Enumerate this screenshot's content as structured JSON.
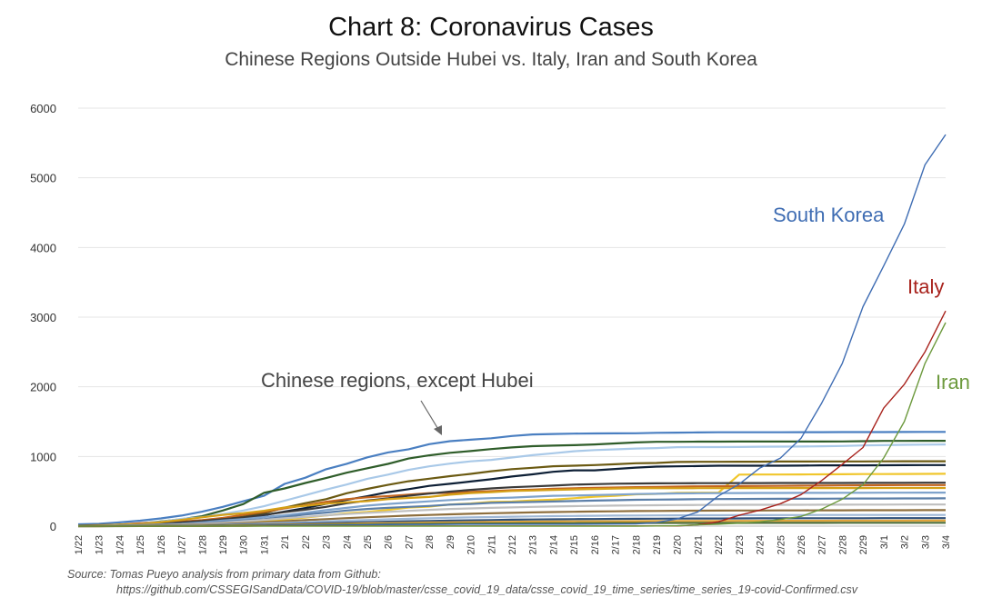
{
  "title": "Chart 8: Coronavirus Cases",
  "subtitle": "Chinese Regions Outside Hubei vs. Italy, Iran and South Korea",
  "source_line1": "Source: Tomas Pueyo analysis from primary data from Github:",
  "source_line2": "https://github.com/CSSEGISandData/COVID-19/blob/master/csse_covid_19_data/csse_covid_19_time_series/time_series_19-covid-Confirmed.csv",
  "colors": {
    "south_korea": "#3f6db3",
    "italy": "#a8221c",
    "iran": "#6d9a3e",
    "grid": "#e4e4e4",
    "axis_text": "#333333"
  },
  "chart_data": {
    "type": "line",
    "x": [
      "1/22",
      "1/23",
      "1/24",
      "1/25",
      "1/26",
      "1/27",
      "1/28",
      "1/29",
      "1/30",
      "1/31",
      "2/1",
      "2/2",
      "2/3",
      "2/4",
      "2/5",
      "2/6",
      "2/7",
      "2/8",
      "2/9",
      "2/10",
      "2/11",
      "2/12",
      "2/13",
      "2/14",
      "2/15",
      "2/16",
      "2/17",
      "2/18",
      "2/19",
      "2/20",
      "2/21",
      "2/22",
      "2/23",
      "2/24",
      "2/25",
      "2/26",
      "2/27",
      "2/28",
      "2/29",
      "3/1",
      "3/2",
      "3/3",
      "3/4"
    ],
    "ylim": [
      0,
      6000
    ],
    "yticks": [
      0,
      1000,
      2000,
      3000,
      4000,
      5000,
      6000
    ],
    "grid": true,
    "legend": "none",
    "annotations": [
      {
        "text": "South Korea",
        "series": "south_korea"
      },
      {
        "text": "Italy",
        "series": "italy"
      },
      {
        "text": "Iran",
        "series": "iran"
      },
      {
        "text": "Chinese regions, except Hubei",
        "series": "chinese_regions"
      }
    ],
    "series": [
      {
        "id": "south_korea",
        "color": "#3f6db3",
        "highlight": true,
        "values": [
          1,
          1,
          2,
          2,
          3,
          4,
          4,
          4,
          4,
          11,
          12,
          15,
          15,
          16,
          19,
          23,
          24,
          24,
          25,
          27,
          28,
          28,
          28,
          28,
          28,
          29,
          30,
          31,
          51,
          104,
          204,
          433,
          602,
          833,
          977,
          1261,
          1766,
          2337,
          3150,
          3736,
          4335,
          5186,
          5621
        ]
      },
      {
        "id": "italy",
        "color": "#a8221c",
        "highlight": true,
        "values": [
          0,
          0,
          0,
          0,
          0,
          0,
          0,
          0,
          0,
          2,
          2,
          2,
          2,
          2,
          2,
          2,
          3,
          3,
          3,
          3,
          3,
          3,
          3,
          3,
          3,
          3,
          3,
          3,
          3,
          3,
          20,
          62,
          155,
          229,
          322,
          453,
          655,
          888,
          1128,
          1694,
          2036,
          2502,
          3089
        ]
      },
      {
        "id": "iran",
        "color": "#6d9a3e",
        "highlight": true,
        "values": [
          0,
          0,
          0,
          0,
          0,
          0,
          0,
          0,
          0,
          0,
          0,
          0,
          0,
          0,
          0,
          0,
          0,
          0,
          0,
          0,
          0,
          0,
          0,
          0,
          0,
          0,
          0,
          0,
          2,
          5,
          18,
          28,
          43,
          61,
          95,
          139,
          245,
          388,
          593,
          978,
          1501,
          2336,
          2922
        ]
      },
      {
        "id": "chinese_regions",
        "color": "#4a7fc1",
        "values": [
          26,
          32,
          53,
          78,
          111,
          151,
          207,
          277,
          358,
          436,
          606,
          695,
          816,
          895,
          988,
          1058,
          1103,
          1177,
          1219,
          1241,
          1261,
          1294,
          1316,
          1322,
          1328,
          1331,
          1332,
          1333,
          1339,
          1342,
          1345,
          1347,
          1347,
          1347,
          1348,
          1349,
          1349,
          1350,
          1350,
          1350,
          1351,
          1352,
          1352
        ]
      },
      {
        "id": "chinese_regions",
        "color": "#2f5d2a",
        "values": [
          2,
          5,
          15,
          39,
          68,
          99,
          142,
          224,
          317,
          479,
          541,
          620,
          690,
          767,
          831,
          893,
          970,
          1016,
          1052,
          1077,
          1106,
          1129,
          1148,
          1155,
          1162,
          1172,
          1187,
          1201,
          1210,
          1210,
          1213,
          1213,
          1215,
          1215,
          1215,
          1215,
          1215,
          1216,
          1219,
          1223,
          1224,
          1225,
          1225
        ]
      },
      {
        "id": "chinese_regions",
        "color": "#a9c9e8",
        "values": [
          5,
          9,
          25,
          43,
          62,
          104,
          128,
          173,
          224,
          286,
          365,
          445,
          524,
          597,
          679,
          739,
          808,
          858,
          898,
          930,
          951,
          985,
          1019,
          1046,
          1075,
          1092,
          1102,
          1114,
          1121,
          1134,
          1135,
          1135,
          1136,
          1140,
          1141,
          1143,
          1146,
          1151,
          1158,
          1162,
          1167,
          1170,
          1172
        ]
      },
      {
        "id": "chinese_regions",
        "color": "#0d1f35",
        "values": [
          1,
          5,
          8,
          18,
          33,
          47,
          58,
          78,
          104,
          156,
          210,
          260,
          321,
          377,
          429,
          488,
          531,
          578,
          608,
          640,
          673,
          712,
          743,
          780,
          801,
          801,
          821,
          840,
          854,
          858,
          862,
          867,
          867,
          867,
          868,
          869,
          873,
          873,
          873,
          874,
          875,
          876,
          877
        ]
      },
      {
        "id": "chinese_regions",
        "color": "#6b5a12",
        "values": [
          9,
          16,
          20,
          33,
          40,
          53,
          66,
          96,
          136,
          186,
          265,
          330,
          387,
          472,
          535,
          592,
          644,
          681,
          717,
          750,
          788,
          818,
          838,
          860,
          868,
          877,
          888,
          902,
          906,
          921,
          923,
          924,
          925,
          925,
          927,
          928,
          929,
          929,
          929,
          930,
          931,
          931,
          931
        ]
      },
      {
        "id": "chinese_regions",
        "color": "#f0c62c",
        "values": [
          0,
          0,
          2,
          5,
          9,
          18,
          26,
          37,
          54,
          78,
          96,
          124,
          153,
          184,
          205,
          234,
          268,
          280,
          310,
          325,
          347,
          352,
          369,
          380,
          400,
          423,
          435,
          457,
          463,
          477,
          480,
          480,
          740,
          741,
          741,
          742,
          744,
          745,
          747,
          748,
          749,
          750,
          751
        ]
      },
      {
        "id": "chinese_regions",
        "color": "#c4651e",
        "values": [
          4,
          10,
          22,
          40,
          51,
          65,
          88,
          117,
          163,
          206,
          256,
          301,
          350,
          387,
          413,
          430,
          453,
          473,
          476,
          490,
          502,
          515,
          524,
          536,
          544,
          551,
          555,
          560,
          563,
          568,
          571,
          573,
          575,
          576,
          578,
          580,
          582,
          584,
          586,
          588,
          589,
          590,
          590
        ]
      },
      {
        "id": "chinese_regions",
        "color": "#3a3a3a",
        "values": [
          3,
          4,
          10,
          22,
          36,
          53,
          73,
          101,
          126,
          163,
          202,
          236,
          277,
          329,
          366,
          398,
          437,
          467,
          496,
          521,
          541,
          558,
          570,
          582,
          596,
          602,
          609,
          612,
          614,
          616,
          617,
          617,
          618,
          618,
          619,
          619,
          620,
          620,
          621,
          622,
          622,
          623,
          623
        ]
      },
      {
        "id": "chinese_regions",
        "color": "#d4a017",
        "values": [
          2,
          9,
          21,
          27,
          57,
          90,
          126,
          162,
          186,
          221,
          268,
          292,
          322,
          343,
          359,
          387,
          405,
          419,
          451,
          473,
          487,
          505,
          511,
          519,
          527,
          533,
          540,
          544,
          544,
          544,
          545,
          545,
          546,
          546,
          546,
          546,
          547,
          547,
          547,
          548,
          548,
          548,
          548
        ]
      },
      {
        "id": "chinese_regions",
        "color": "#7fa3cc",
        "values": [
          1,
          5,
          9,
          17,
          24,
          35,
          55,
          79,
          102,
          130,
          156,
          192,
          230,
          262,
          295,
          318,
          338,
          356,
          374,
          390,
          402,
          410,
          423,
          436,
          440,
          446,
          453,
          460,
          465,
          470,
          472,
          474,
          475,
          476,
          476,
          477,
          478,
          479,
          479,
          480,
          480,
          481,
          481
        ]
      },
      {
        "id": "chinese_regions",
        "color": "#5c7fa8",
        "values": [
          1,
          3,
          7,
          12,
          21,
          32,
          45,
          63,
          80,
          100,
          131,
          168,
          194,
          224,
          246,
          262,
          276,
          290,
          309,
          318,
          334,
          340,
          347,
          353,
          360,
          366,
          372,
          378,
          381,
          384,
          387,
          389,
          390,
          391,
          392,
          393,
          394,
          395,
          396,
          397,
          398,
          398,
          399
        ]
      },
      {
        "id": "chinese_regions",
        "color": "#bfbfbf",
        "values": [
          1,
          2,
          5,
          9,
          16,
          25,
          35,
          50,
          70,
          90,
          112,
          133,
          155,
          174,
          191,
          205,
          219,
          234,
          246,
          254,
          262,
          269,
          276,
          282,
          287,
          291,
          295,
          298,
          300,
          302,
          304,
          305,
          306,
          306,
          307,
          307,
          308,
          308,
          309,
          309,
          310,
          310,
          310
        ]
      },
      {
        "id": "chinese_regions",
        "color": "#8e6f3e",
        "values": [
          0,
          1,
          3,
          6,
          10,
          15,
          22,
          31,
          42,
          56,
          71,
          86,
          101,
          115,
          128,
          140,
          151,
          161,
          170,
          178,
          185,
          191,
          197,
          202,
          206,
          210,
          213,
          216,
          218,
          220,
          222,
          223,
          224,
          225,
          226,
          226,
          227,
          227,
          228,
          228,
          228,
          229,
          229
        ]
      },
      {
        "id": "chinese_regions",
        "color": "#9fb8d6",
        "values": [
          0,
          1,
          2,
          4,
          7,
          11,
          16,
          22,
          29,
          38,
          48,
          58,
          69,
          79,
          89,
          98,
          106,
          113,
          120,
          126,
          131,
          136,
          140,
          143,
          146,
          149,
          151,
          153,
          154,
          155,
          156,
          157,
          158,
          158,
          159,
          159,
          160,
          160,
          160,
          161,
          161,
          161,
          161
        ]
      },
      {
        "id": "chinese_regions",
        "color": "#2d4e7a",
        "values": [
          0,
          0,
          1,
          2,
          4,
          6,
          9,
          13,
          18,
          24,
          30,
          37,
          44,
          51,
          58,
          64,
          70,
          75,
          80,
          84,
          88,
          92,
          95,
          98,
          100,
          102,
          104,
          106,
          107,
          108,
          109,
          110,
          111,
          112,
          112,
          113,
          113,
          114,
          114,
          115,
          115,
          115,
          115
        ]
      },
      {
        "id": "chinese_regions",
        "color": "#e0a43a",
        "values": [
          0,
          0,
          1,
          1,
          2,
          4,
          6,
          9,
          12,
          16,
          20,
          25,
          30,
          35,
          40,
          44,
          48,
          52,
          55,
          58,
          61,
          63,
          65,
          67,
          69,
          70,
          71,
          72,
          73,
          74,
          75,
          75,
          76,
          76,
          77,
          77,
          77,
          78,
          78,
          78,
          78,
          79,
          79
        ]
      },
      {
        "id": "chinese_regions",
        "color": "#4f6e3a",
        "values": [
          0,
          0,
          0,
          1,
          1,
          2,
          3,
          5,
          7,
          9,
          12,
          15,
          18,
          21,
          24,
          27,
          30,
          32,
          34,
          36,
          38,
          39,
          40,
          41,
          42,
          43,
          44,
          44,
          45,
          45,
          46,
          46,
          46,
          47,
          47,
          47,
          47,
          48,
          48,
          48,
          48,
          48,
          48
        ]
      }
    ]
  }
}
